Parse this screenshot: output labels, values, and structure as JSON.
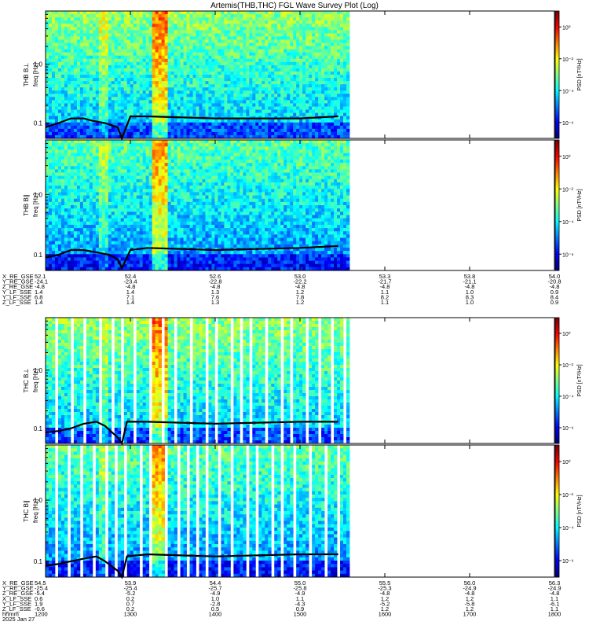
{
  "title": "Artemis(THB,THC) FGL Wave Survey Plot (Log)",
  "colorbar": {
    "label": "PSD [nT²/Hz]",
    "ticks": [
      "10⁰",
      "10⁻²",
      "10⁻⁴",
      "10⁻⁶"
    ]
  },
  "freq_ticks": [
    "1.0",
    "0.1"
  ],
  "panels": [
    {
      "id": "thb-bl",
      "probe_label": "THB B⊥",
      "ylabel": "freq [Hz]"
    },
    {
      "id": "thb-bpar",
      "probe_label": "THB B∥",
      "ylabel": "freq [Hz]"
    },
    {
      "id": "thc-bl",
      "probe_label": "THC B⊥",
      "ylabel": "freq [Hz]"
    },
    {
      "id": "thc-bpar",
      "probe_label": "THC B∥",
      "ylabel": "freq [Hz]"
    }
  ],
  "ephem_top": {
    "labels": [
      "X_RE_GSE",
      "Y_RE_GSE",
      "Z_RE_GSE",
      "Y_LF_SSE",
      "Y_LF_SSE",
      "Z_LF_SSE"
    ],
    "columns": [
      [
        "52.1",
        "-24.1",
        "-4.8",
        "1.4",
        "6.8",
        "1.4"
      ],
      [
        "52.4",
        "-23.4",
        "-4.8",
        "1.4",
        "7.1",
        "1.4"
      ],
      [
        "52.6",
        "-22.8",
        "-4.8",
        "1.3",
        "7.6",
        "1.3"
      ],
      [
        "53.0",
        "-22.2",
        "-4.8",
        "1.2",
        "7.8",
        "1.2"
      ],
      [
        "53.3",
        "-21.7",
        "-4.8",
        "1.1",
        "8.2",
        "1.1"
      ],
      [
        "53.8",
        "-21.1",
        "-4.8",
        "1.0",
        "8.3",
        "1.0"
      ],
      [
        "54.0",
        "-20.8",
        "-4.8",
        "0.9",
        "8.4",
        "0.9"
      ]
    ]
  },
  "ephem_bottom": {
    "labels": [
      "X_RE_GSE",
      "Y_RE_GSE",
      "Z_RE_GSE",
      "X_LF_SSE",
      "Y_LF_SSE",
      "Z_LF_SSE",
      "hhmm",
      "2025 Jan 27"
    ],
    "columns": [
      [
        "54.5",
        "-25.4",
        "-5.4",
        "0.6",
        "1.9",
        "-0.6",
        "1200"
      ],
      [
        "53.9",
        "-25.4",
        "-5.2",
        "0.2",
        "0.7",
        "0.2",
        "1300"
      ],
      [
        "54.4",
        "-25.7",
        "-4.9",
        "1.0",
        "-2.8",
        "0.5",
        "1400"
      ],
      [
        "55.0",
        "-25.8",
        "-4.9",
        "1.1",
        "-4.3",
        "0.9",
        "1500"
      ],
      [
        "55.5",
        "-25.3",
        "-4.8",
        "1.2",
        "-5.2",
        "1.2",
        "1600"
      ],
      [
        "56.0",
        "-24.9",
        "-4.8",
        "1.2",
        "-5.8",
        "1.2",
        "1700"
      ],
      [
        "56.3",
        "-24.9",
        "-4.8",
        "1.1",
        "-6.1",
        "1.1",
        "1800"
      ]
    ]
  },
  "chart_data": [
    {
      "type": "heatmap",
      "panel": "THB B⊥",
      "ylabel": "freq [Hz]",
      "y_scale": "log",
      "ylim": [
        0.055,
        8.0
      ],
      "colorbar_label": "PSD [nT²/Hz]",
      "colorbar_scale": "log",
      "zlim": [
        1e-07,
        10
      ],
      "x_time_range": [
        "1200",
        "1800"
      ],
      "data_until": "1545",
      "trace": [
        [
          1200,
          0.085
        ],
        [
          1215,
          0.1
        ],
        [
          1230,
          0.12
        ],
        [
          1245,
          0.12
        ],
        [
          1255,
          0.11
        ],
        [
          1270,
          0.1
        ],
        [
          1285,
          0.085
        ],
        [
          1290,
          0.055
        ],
        [
          1300,
          0.13
        ],
        [
          1320,
          0.13
        ],
        [
          1400,
          0.12
        ],
        [
          1500,
          0.12
        ],
        [
          1545,
          0.13
        ]
      ]
    },
    {
      "type": "heatmap",
      "panel": "THB B∥",
      "ylabel": "freq [Hz]",
      "y_scale": "log",
      "ylim": [
        0.055,
        8.0
      ],
      "colorbar_label": "PSD [nT²/Hz]",
      "colorbar_scale": "log",
      "zlim": [
        1e-07,
        10
      ],
      "x_time_range": [
        "1200",
        "1800"
      ],
      "data_until": "1545",
      "trace": [
        [
          1200,
          0.09
        ],
        [
          1215,
          0.1
        ],
        [
          1230,
          0.12
        ],
        [
          1245,
          0.12
        ],
        [
          1260,
          0.11
        ],
        [
          1275,
          0.1
        ],
        [
          1285,
          0.085
        ],
        [
          1290,
          0.06
        ],
        [
          1300,
          0.12
        ],
        [
          1320,
          0.13
        ],
        [
          1400,
          0.12
        ],
        [
          1500,
          0.13
        ],
        [
          1545,
          0.14
        ]
      ]
    },
    {
      "type": "heatmap",
      "panel": "THC B⊥",
      "ylabel": "freq [Hz]",
      "y_scale": "log",
      "ylim": [
        0.055,
        8.0
      ],
      "colorbar_label": "PSD [nT²/Hz]",
      "colorbar_scale": "log",
      "zlim": [
        1e-07,
        10
      ],
      "x_time_range": [
        "1200",
        "1800"
      ],
      "data_until": "1545",
      "trace": [
        [
          1200,
          0.085
        ],
        [
          1215,
          0.09
        ],
        [
          1230,
          0.1
        ],
        [
          1245,
          0.12
        ],
        [
          1260,
          0.13
        ],
        [
          1270,
          0.11
        ],
        [
          1285,
          0.07
        ],
        [
          1290,
          0.055
        ],
        [
          1296,
          0.13
        ],
        [
          1320,
          0.13
        ],
        [
          1400,
          0.12
        ],
        [
          1500,
          0.13
        ],
        [
          1545,
          0.13
        ]
      ]
    },
    {
      "type": "heatmap",
      "panel": "THC B∥",
      "ylabel": "freq [Hz]",
      "y_scale": "log",
      "ylim": [
        0.055,
        8.0
      ],
      "colorbar_label": "PSD [nT²/Hz]",
      "colorbar_scale": "log",
      "zlim": [
        1e-07,
        10
      ],
      "x_time_range": [
        "1200",
        "1800"
      ],
      "data_until": "1545",
      "trace": [
        [
          1200,
          0.085
        ],
        [
          1215,
          0.09
        ],
        [
          1230,
          0.1
        ],
        [
          1245,
          0.11
        ],
        [
          1260,
          0.12
        ],
        [
          1270,
          0.1
        ],
        [
          1285,
          0.07
        ],
        [
          1290,
          0.055
        ],
        [
          1296,
          0.12
        ],
        [
          1320,
          0.13
        ],
        [
          1400,
          0.12
        ],
        [
          1500,
          0.13
        ],
        [
          1545,
          0.13
        ]
      ]
    }
  ]
}
